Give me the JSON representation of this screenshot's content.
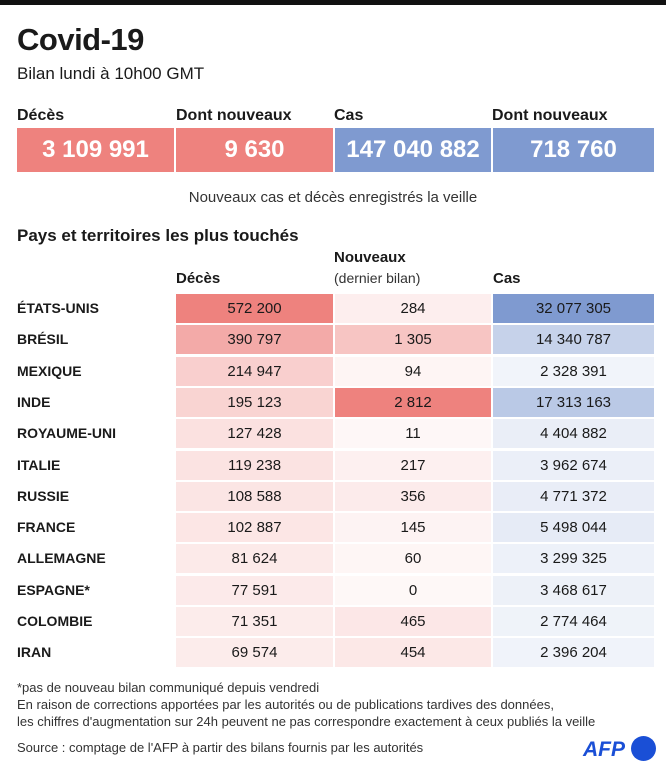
{
  "header": {
    "title": "Covid-19",
    "subtitle": "Bilan lundi à 10h00 GMT"
  },
  "kpis": [
    {
      "label": "Décès",
      "value": "3 109 991",
      "color": "#EE827E"
    },
    {
      "label": "Dont nouveaux",
      "value": "9 630",
      "color": "#EE827E"
    },
    {
      "label": "Cas",
      "value": "147 040 882",
      "color": "#7F9AD0"
    },
    {
      "label": "Dont nouveaux",
      "value": "718 760",
      "color": "#7F9AD0"
    }
  ],
  "kpi_note": "Nouveaux cas et décès enregistrés la veille",
  "section_title": "Pays et territoires les plus touchés",
  "chart_data": {
    "type": "table",
    "title": "Pays et territoires les plus touchés",
    "columns": [
      "Décès",
      "Nouveaux",
      "Cas"
    ],
    "column_sub": [
      "",
      "(dernier bilan)",
      ""
    ],
    "rows": [
      {
        "country": "ÉTATS-UNIS",
        "deaths": 572200,
        "new": 284,
        "cases": 32077305,
        "deaths_label": "572 200",
        "new_label": "284",
        "cases_label": "32 077 305"
      },
      {
        "country": "BRÉSIL",
        "deaths": 390797,
        "new": 1305,
        "cases": 14340787,
        "deaths_label": "390 797",
        "new_label": "1 305",
        "cases_label": "14 340 787"
      },
      {
        "country": "MEXIQUE",
        "deaths": 214947,
        "new": 94,
        "cases": 2328391,
        "deaths_label": "214 947",
        "new_label": "94",
        "cases_label": "2 328 391"
      },
      {
        "country": "INDE",
        "deaths": 195123,
        "new": 2812,
        "cases": 17313163,
        "deaths_label": "195 123",
        "new_label": "2 812",
        "cases_label": "17 313 163"
      },
      {
        "country": "ROYAUME-UNI",
        "deaths": 127428,
        "new": 11,
        "cases": 4404882,
        "deaths_label": "127 428",
        "new_label": "11",
        "cases_label": "4 404 882"
      },
      {
        "country": "ITALIE",
        "deaths": 119238,
        "new": 217,
        "cases": 3962674,
        "deaths_label": "119 238",
        "new_label": "217",
        "cases_label": "3 962 674"
      },
      {
        "country": "RUSSIE",
        "deaths": 108588,
        "new": 356,
        "cases": 4771372,
        "deaths_label": "108 588",
        "new_label": "356",
        "cases_label": "4 771 372"
      },
      {
        "country": "FRANCE",
        "deaths": 102887,
        "new": 145,
        "cases": 5498044,
        "deaths_label": "102 887",
        "new_label": "145",
        "cases_label": "5 498 044"
      },
      {
        "country": "ALLEMAGNE",
        "deaths": 81624,
        "new": 60,
        "cases": 3299325,
        "deaths_label": "81 624",
        "new_label": "60",
        "cases_label": "3 299 325"
      },
      {
        "country": "ESPAGNE*",
        "deaths": 77591,
        "new": 0,
        "cases": 3468617,
        "deaths_label": "77 591",
        "new_label": "0",
        "cases_label": "3 468 617"
      },
      {
        "country": "COLOMBIE",
        "deaths": 71351,
        "new": 465,
        "cases": 2774464,
        "deaths_label": "71 351",
        "new_label": "465",
        "cases_label": "2 774 464"
      },
      {
        "country": "IRAN",
        "deaths": 69574,
        "new": 454,
        "cases": 2396204,
        "deaths_label": "69 574",
        "new_label": "454",
        "cases_label": "2 396 204"
      }
    ]
  },
  "colors": {
    "red": "#EE827E",
    "blue": "#7F9AD0"
  },
  "footer": {
    "note1": "*pas de nouveau bilan communiqué depuis vendredi",
    "note2": "En raison de corrections apportées par les autorités ou de publications tardives des données,",
    "note3": "les chiffres d'augmentation sur 24h peuvent ne pas correspondre exactement à ceux publiés la veille",
    "source": "Source : comptage de l'AFP à partir des bilans fournis par les autorités",
    "logo": "AFP"
  }
}
